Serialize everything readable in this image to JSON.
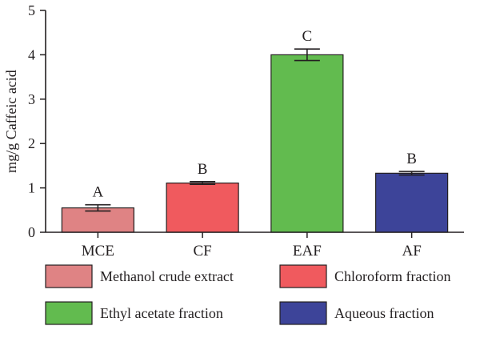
{
  "chart_data": {
    "type": "bar",
    "categories": [
      "MCE",
      "CF",
      "EAF",
      "AF"
    ],
    "values": [
      0.55,
      1.11,
      4.0,
      1.33
    ],
    "errors": [
      0.07,
      0.03,
      0.13,
      0.04
    ],
    "significance_letters": [
      "A",
      "B",
      "C",
      "B"
    ],
    "colors": [
      "#df8384",
      "#f05a5e",
      "#62bb4f",
      "#3d4499"
    ],
    "legend": [
      "Methanol crude extract",
      "Chloroform fraction",
      "Ethyl acetate fraction",
      "Aqueous fraction"
    ],
    "legend_placement": "bottom",
    "ylabel": "mg/g Caffeic acid",
    "xlabel": "",
    "title": "",
    "ylim": [
      0,
      5
    ],
    "yticks": [
      "0",
      "1",
      "2",
      "3",
      "4",
      "5"
    ],
    "grid": false
  }
}
